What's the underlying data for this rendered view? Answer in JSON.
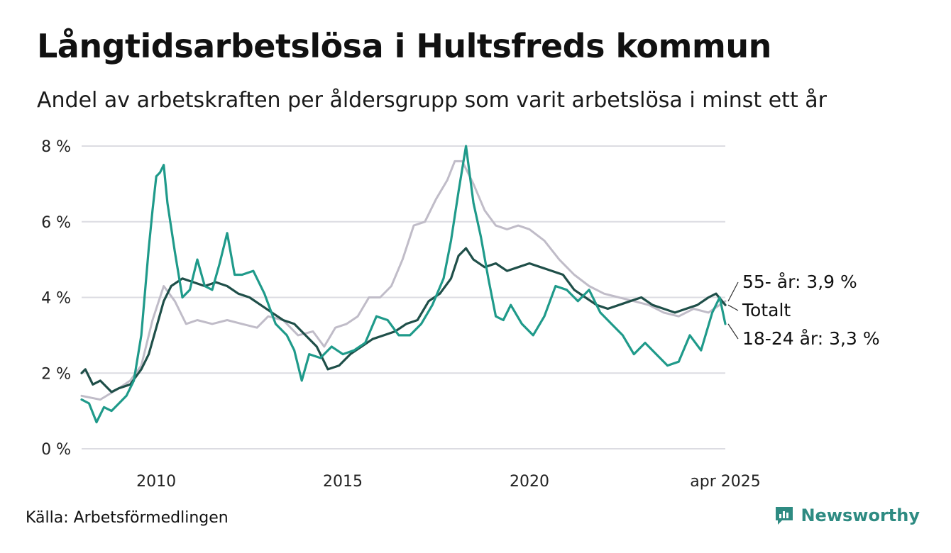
{
  "title": "Långtidsarbetslösa i Hultsfreds kommun",
  "subtitle": "Andel av arbetskraften per åldersgrupp som varit arbetslösa i minst ett år",
  "source": "Källa: Arbetsförmedlingen",
  "brand": "Newsworthy",
  "colors": {
    "totalt": "#1f4f49",
    "age_18_24": "#1f9a8a",
    "age_55": "#c0bcc8",
    "grid": "#dcdce2",
    "brand": "#2e8b82"
  },
  "chart_data": {
    "type": "line",
    "x_unit": "year",
    "x_range": [
      2008.0,
      2025.25
    ],
    "y_range": [
      0,
      8
    ],
    "y_ticks": [
      0,
      2,
      4,
      6,
      8
    ],
    "y_tick_labels": [
      "0 %",
      "2 %",
      "4 %",
      "6 %",
      "8 %"
    ],
    "x_ticks": [
      2010,
      2015,
      2020,
      2025.25
    ],
    "x_tick_labels": [
      "2010",
      "2015",
      "2020",
      "apr 2025"
    ],
    "grid": true,
    "legend": "direct labels at line ends (right)",
    "end_labels": [
      {
        "series": "age_55",
        "text": "55- år: 3,9 %"
      },
      {
        "series": "totalt",
        "text": "Totalt"
      },
      {
        "series": "age_18_24",
        "text": "18-24 år: 3,3 %"
      }
    ],
    "series": [
      {
        "id": "age_55",
        "x": [
          2008.0,
          2008.5,
          2009.0,
          2009.3,
          2009.6,
          2009.9,
          2010.2,
          2010.5,
          2010.8,
          2011.1,
          2011.5,
          2011.9,
          2012.3,
          2012.7,
          2013.0,
          2013.4,
          2013.8,
          2014.2,
          2014.5,
          2014.8,
          2015.1,
          2015.4,
          2015.7,
          2016.0,
          2016.3,
          2016.6,
          2016.9,
          2017.2,
          2017.5,
          2017.8,
          2018.0,
          2018.2,
          2018.5,
          2018.8,
          2019.1,
          2019.4,
          2019.7,
          2020.0,
          2020.4,
          2020.8,
          2021.2,
          2021.6,
          2022.0,
          2022.4,
          2022.8,
          2023.2,
          2023.6,
          2024.0,
          2024.4,
          2024.8,
          2025.25
        ],
        "y": [
          1.4,
          1.3,
          1.6,
          1.8,
          2.2,
          3.4,
          4.3,
          3.9,
          3.3,
          3.4,
          3.3,
          3.4,
          3.3,
          3.2,
          3.5,
          3.4,
          3.0,
          3.1,
          2.7,
          3.2,
          3.3,
          3.5,
          4.0,
          4.0,
          4.3,
          5.0,
          5.9,
          6.0,
          6.6,
          7.1,
          7.6,
          7.6,
          7.0,
          6.3,
          5.9,
          5.8,
          5.9,
          5.8,
          5.5,
          5.0,
          4.6,
          4.3,
          4.1,
          4.0,
          3.9,
          3.8,
          3.6,
          3.5,
          3.7,
          3.6,
          3.9
        ]
      },
      {
        "id": "totalt",
        "x": [
          2008.0,
          2008.1,
          2008.3,
          2008.5,
          2008.8,
          2009.0,
          2009.3,
          2009.6,
          2009.8,
          2010.0,
          2010.2,
          2010.4,
          2010.7,
          2011.0,
          2011.3,
          2011.6,
          2011.9,
          2012.2,
          2012.5,
          2012.8,
          2013.1,
          2013.4,
          2013.7,
          2014.0,
          2014.3,
          2014.6,
          2014.9,
          2015.2,
          2015.5,
          2015.8,
          2016.1,
          2016.4,
          2016.7,
          2017.0,
          2017.3,
          2017.6,
          2017.9,
          2018.1,
          2018.3,
          2018.5,
          2018.8,
          2019.1,
          2019.4,
          2019.7,
          2020.0,
          2020.3,
          2020.6,
          2020.9,
          2021.2,
          2021.5,
          2021.8,
          2022.1,
          2022.4,
          2022.7,
          2023.0,
          2023.3,
          2023.6,
          2023.9,
          2024.2,
          2024.5,
          2024.8,
          2025.0,
          2025.25
        ],
        "y": [
          2.0,
          2.1,
          1.7,
          1.8,
          1.5,
          1.6,
          1.7,
          2.1,
          2.5,
          3.2,
          3.9,
          4.3,
          4.5,
          4.4,
          4.3,
          4.4,
          4.3,
          4.1,
          4.0,
          3.8,
          3.6,
          3.4,
          3.3,
          3.0,
          2.7,
          2.1,
          2.2,
          2.5,
          2.7,
          2.9,
          3.0,
          3.1,
          3.3,
          3.4,
          3.9,
          4.1,
          4.5,
          5.1,
          5.3,
          5.0,
          4.8,
          4.9,
          4.7,
          4.8,
          4.9,
          4.8,
          4.7,
          4.6,
          4.2,
          4.0,
          3.8,
          3.7,
          3.8,
          3.9,
          4.0,
          3.8,
          3.7,
          3.6,
          3.7,
          3.8,
          4.0,
          4.1,
          3.8
        ]
      },
      {
        "id": "age_18_24",
        "x": [
          2008.0,
          2008.2,
          2008.4,
          2008.6,
          2008.8,
          2009.0,
          2009.2,
          2009.4,
          2009.6,
          2009.8,
          2009.9,
          2010.0,
          2010.1,
          2010.2,
          2010.3,
          2010.5,
          2010.7,
          2010.9,
          2011.1,
          2011.3,
          2011.5,
          2011.7,
          2011.9,
          2012.1,
          2012.3,
          2012.6,
          2012.9,
          2013.2,
          2013.5,
          2013.7,
          2013.9,
          2014.1,
          2014.4,
          2014.7,
          2015.0,
          2015.3,
          2015.6,
          2015.9,
          2016.2,
          2016.5,
          2016.8,
          2017.1,
          2017.4,
          2017.7,
          2017.9,
          2018.1,
          2018.3,
          2018.5,
          2018.7,
          2018.9,
          2019.1,
          2019.3,
          2019.5,
          2019.8,
          2020.1,
          2020.4,
          2020.7,
          2021.0,
          2021.3,
          2021.6,
          2021.9,
          2022.2,
          2022.5,
          2022.8,
          2023.1,
          2023.4,
          2023.7,
          2024.0,
          2024.3,
          2024.6,
          2024.9,
          2025.1,
          2025.25
        ],
        "y": [
          1.3,
          1.2,
          0.7,
          1.1,
          1.0,
          1.2,
          1.4,
          1.8,
          3.0,
          5.3,
          6.3,
          7.2,
          7.3,
          7.5,
          6.5,
          5.2,
          4.0,
          4.2,
          5.0,
          4.3,
          4.2,
          4.9,
          5.7,
          4.6,
          4.6,
          4.7,
          4.1,
          3.3,
          3.0,
          2.6,
          1.8,
          2.5,
          2.4,
          2.7,
          2.5,
          2.6,
          2.8,
          3.5,
          3.4,
          3.0,
          3.0,
          3.3,
          3.8,
          4.5,
          5.5,
          6.8,
          8.0,
          6.5,
          5.6,
          4.5,
          3.5,
          3.4,
          3.8,
          3.3,
          3.0,
          3.5,
          4.3,
          4.2,
          3.9,
          4.2,
          3.6,
          3.3,
          3.0,
          2.5,
          2.8,
          2.5,
          2.2,
          2.3,
          3.0,
          2.6,
          3.6,
          4.0,
          3.3
        ]
      }
    ]
  }
}
